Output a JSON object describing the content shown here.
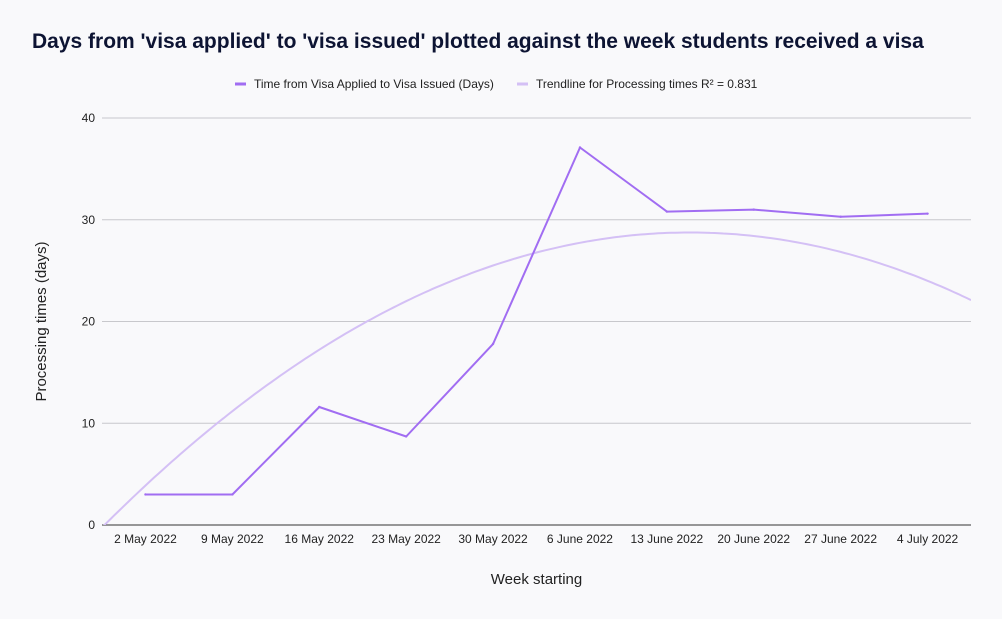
{
  "chart_data": {
    "type": "line",
    "title": "Days from 'visa applied' to 'visa issued' plotted against the week students received a visa",
    "xlabel": "Week starting",
    "ylabel": "Processing times (days)",
    "categories": [
      "2 May 2022",
      "9 May 2022",
      "16 May 2022",
      "23 May 2022",
      "30 May 2022",
      "6 June 2022",
      "13 June 2022",
      "20 June 2022",
      "27 June 2022",
      "4 July 2022"
    ],
    "series": [
      {
        "name": "Time from Visa Applied to Visa Issued (Days)",
        "color": "#a16df2",
        "values": [
          3.0,
          3.0,
          11.6,
          8.7,
          17.8,
          37.1,
          30.8,
          31.0,
          30.3,
          30.6
        ]
      }
    ],
    "trendline": {
      "name": "Trendline for Processing times R² = 0.831",
      "color": "#d4c0f5",
      "type": "polynomial",
      "coefficients": [
        -4.7,
        9.21,
        -0.634
      ]
    },
    "ylim": [
      0,
      40
    ],
    "yticks": [
      0,
      10,
      20,
      30,
      40
    ],
    "grid": true,
    "legend_position": "top"
  }
}
